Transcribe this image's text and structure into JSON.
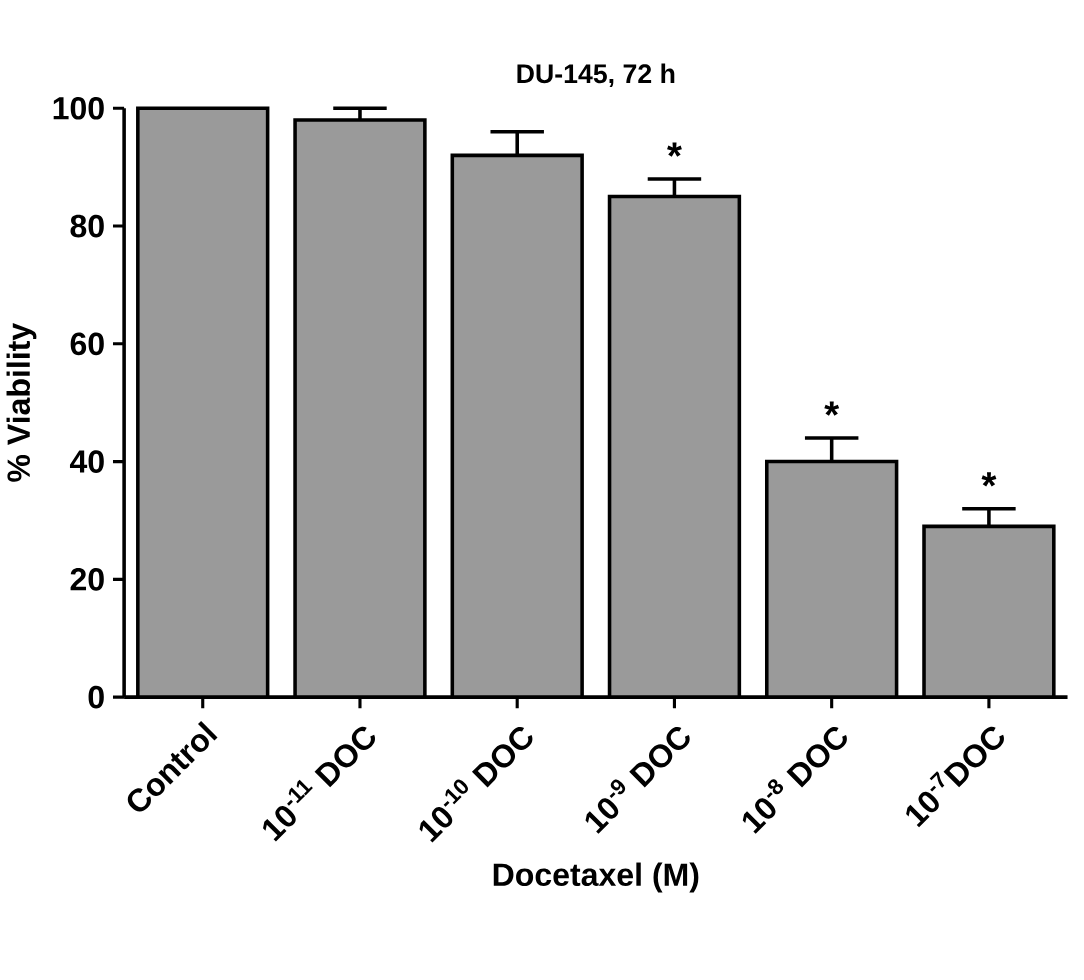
{
  "chart_data": {
    "type": "bar",
    "title": "DU-145, 72 h",
    "xlabel": "Docetaxel (M)",
    "ylabel": "% Viability",
    "categories": [
      "Control",
      "10$^{-11}$ DOC",
      "10$^{-10}$ DOC",
      "10$^{-9}$ DOC",
      "10$^{-8}$ DOC",
      "10$^{-7}$DOC"
    ],
    "values": [
      100,
      98,
      92,
      85,
      40,
      29
    ],
    "errors": [
      null,
      2,
      4,
      3,
      4,
      3
    ],
    "color": "#9a9a9a",
    "ylim": [
      0,
      100
    ],
    "yticks": [
      0,
      20,
      40,
      60,
      80,
      100
    ],
    "annotations": [
      {
        "text": "*",
        "x": "10$^{-9}$ DOC",
        "y": 88
      },
      {
        "text": "*",
        "x": "10$^{-8}$ DOC",
        "y": 44
      },
      {
        "text": "*",
        "x": "10$^{-7}$DOC",
        "y": 32
      }
    ]
  }
}
